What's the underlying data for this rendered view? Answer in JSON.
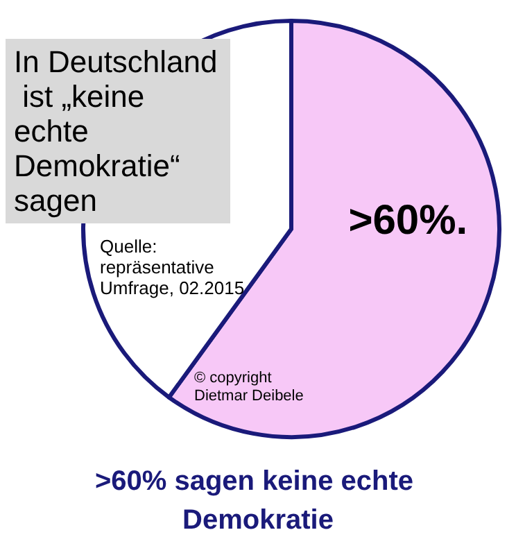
{
  "chart_data": {
    "type": "pie",
    "title": "In Deutschland ist „keine echte Demokratie“ sagen",
    "subtitle": ">60% sagen keine echte Demokratie",
    "categories": [
      null,
      null
    ],
    "values": [
      60,
      40
    ],
    "colors": [
      "#f7c8f7",
      "#ffffff"
    ],
    "value_labels": [
      ">60%.",
      null
    ],
    "annotations": [
      "Quelle: repräsentative Umfrage, 02.2015",
      "© copyright Dietmar Deibele"
    ]
  }
}
